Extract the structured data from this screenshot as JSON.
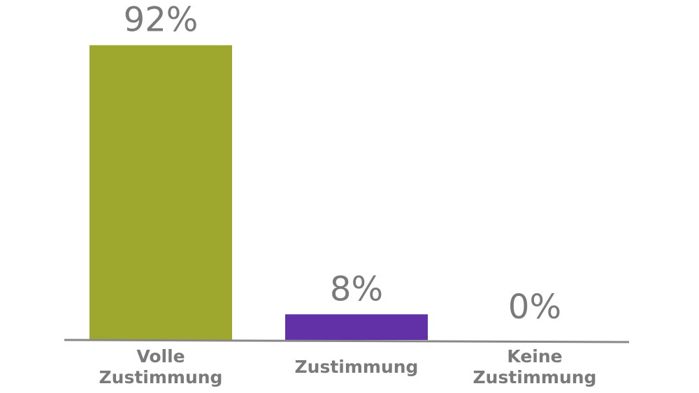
{
  "chart_data": {
    "type": "bar",
    "categories": [
      [
        "Volle",
        "Zustimmung"
      ],
      [
        "Zustimmung"
      ],
      [
        "Keine",
        "Zustimmung"
      ]
    ],
    "values": [
      92,
      8,
      0
    ],
    "data_labels": [
      "92%",
      "8%",
      "0%"
    ],
    "colors": [
      "#9ea82e",
      "#6231a8",
      "#9ea82e"
    ],
    "axis_color": "#888888",
    "label_color": "#7a7a7a",
    "ylim": [
      0,
      100
    ],
    "grid": false,
    "legend": "none"
  }
}
